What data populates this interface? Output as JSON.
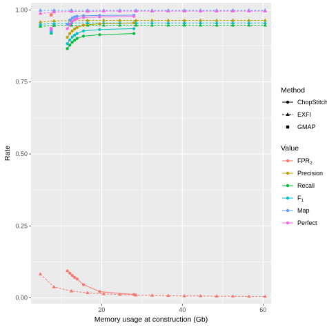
{
  "chart_data": {
    "type": "line",
    "xlabel": "Memory usage at construction (Gb)",
    "ylabel": "Rate",
    "xlim": [
      2.5,
      62
    ],
    "ylim": [
      -0.02,
      1.025
    ],
    "x_ticks": [
      20,
      40,
      60
    ],
    "y_ticks": [
      0.0,
      0.25,
      0.5,
      0.75,
      1.0
    ],
    "y_tick_labels": [
      "0.00",
      "0.25",
      "0.50",
      "0.75",
      "1.00"
    ],
    "grid": true,
    "legend_position": "right",
    "legend": {
      "method_title": "Method",
      "methods": [
        {
          "key": "chopstitch",
          "label": "ChopStitch",
          "shape": "circle",
          "dash": "solid"
        },
        {
          "key": "exfi",
          "label": "EXFI",
          "shape": "triangle",
          "dash": "dashed"
        },
        {
          "key": "gmap",
          "label": "GMAP",
          "shape": "square",
          "dash": "none"
        }
      ],
      "value_title": "Value",
      "values": [
        {
          "key": "fpr2",
          "label": "FPR",
          "sub": "2",
          "color": "#F8766D"
        },
        {
          "key": "precision",
          "label": "Precision",
          "sub": "",
          "color": "#B79F00"
        },
        {
          "key": "recall",
          "label": "Recall",
          "sub": "",
          "color": "#00BA38"
        },
        {
          "key": "f1",
          "label": "F",
          "sub": "1",
          "color": "#00BFC4"
        },
        {
          "key": "map",
          "label": "Map",
          "sub": "",
          "color": "#619CFF"
        },
        {
          "key": "perfect",
          "label": "Perfect",
          "sub": "",
          "color": "#F564E3"
        }
      ]
    },
    "series": [
      {
        "method": "exfi",
        "value": "fpr2",
        "x": [
          4.8,
          8.2,
          12.5,
          16.5,
          20.5,
          24.5,
          28.5,
          32.5,
          36.5,
          40.5,
          44.5,
          48.5,
          52.5,
          56.5,
          60.5
        ],
        "y": [
          0.083,
          0.038,
          0.024,
          0.018,
          0.014,
          0.012,
          0.01,
          0.009,
          0.008,
          0.007,
          0.007,
          0.006,
          0.006,
          0.005,
          0.005
        ]
      },
      {
        "method": "exfi",
        "value": "precision",
        "x": [
          4.8,
          8.2,
          12.5,
          16.5,
          20.5,
          24.5,
          28.5,
          32.5,
          36.5,
          40.5,
          44.5,
          48.5,
          52.5,
          56.5,
          60.5
        ],
        "y": [
          0.958,
          0.962,
          0.963,
          0.964,
          0.964,
          0.964,
          0.964,
          0.964,
          0.964,
          0.964,
          0.964,
          0.964,
          0.964,
          0.964,
          0.964
        ]
      },
      {
        "method": "exfi",
        "value": "recall",
        "x": [
          4.8,
          8.2,
          12.5,
          16.5,
          20.5,
          24.5,
          28.5,
          32.5,
          36.5,
          40.5,
          44.5,
          48.5,
          52.5,
          56.5,
          60.5
        ],
        "y": [
          0.943,
          0.946,
          0.947,
          0.947,
          0.947,
          0.947,
          0.947,
          0.947,
          0.947,
          0.947,
          0.947,
          0.947,
          0.947,
          0.947,
          0.947
        ]
      },
      {
        "method": "exfi",
        "value": "f1",
        "x": [
          4.8,
          8.2,
          12.5,
          16.5,
          20.5,
          24.5,
          28.5,
          32.5,
          36.5,
          40.5,
          44.5,
          48.5,
          52.5,
          56.5,
          60.5
        ],
        "y": [
          0.95,
          0.953,
          0.955,
          0.955,
          0.955,
          0.955,
          0.955,
          0.955,
          0.955,
          0.955,
          0.955,
          0.955,
          0.955,
          0.955,
          0.955
        ]
      },
      {
        "method": "exfi",
        "value": "map",
        "x": [
          4.8,
          8.2,
          12.5,
          16.5,
          20.5,
          24.5,
          28.5,
          32.5,
          36.5,
          40.5,
          44.5,
          48.5,
          52.5,
          56.5,
          60.5
        ],
        "y": [
          0.999,
          0.999,
          0.999,
          0.999,
          0.999,
          0.999,
          0.999,
          0.999,
          0.999,
          0.999,
          0.999,
          0.999,
          0.999,
          0.999,
          0.999
        ]
      },
      {
        "method": "exfi",
        "value": "perfect",
        "x": [
          4.8,
          8.2,
          12.5,
          16.5,
          20.5,
          24.5,
          28.5,
          32.5,
          36.5,
          40.5,
          44.5,
          48.5,
          52.5,
          56.5,
          60.5
        ],
        "y": [
          0.988,
          0.993,
          0.995,
          0.995,
          0.996,
          0.996,
          0.996,
          0.996,
          0.996,
          0.996,
          0.996,
          0.996,
          0.996,
          0.996,
          0.996
        ]
      },
      {
        "method": "chopstitch",
        "value": "fpr2",
        "x": [
          11.5,
          12.1,
          12.7,
          13.3,
          13.9,
          15.5,
          19.5,
          28.0
        ],
        "y": [
          0.094,
          0.086,
          0.078,
          0.071,
          0.066,
          0.046,
          0.022,
          0.012
        ]
      },
      {
        "method": "chopstitch",
        "value": "precision",
        "x": [
          11.5,
          12.1,
          12.7,
          13.3,
          13.9,
          15.5,
          19.5,
          28.0
        ],
        "y": [
          0.905,
          0.918,
          0.927,
          0.934,
          0.939,
          0.947,
          0.952,
          0.955
        ]
      },
      {
        "method": "chopstitch",
        "value": "recall",
        "x": [
          11.5,
          12.1,
          12.7,
          13.3,
          13.9,
          15.5,
          19.5,
          28.0
        ],
        "y": [
          0.866,
          0.878,
          0.888,
          0.895,
          0.901,
          0.909,
          0.914,
          0.918
        ]
      },
      {
        "method": "chopstitch",
        "value": "f1",
        "x": [
          11.5,
          12.1,
          12.7,
          13.3,
          13.9,
          15.5,
          19.5,
          28.0
        ],
        "y": [
          0.883,
          0.896,
          0.906,
          0.913,
          0.918,
          0.927,
          0.932,
          0.935
        ]
      },
      {
        "method": "chopstitch",
        "value": "map",
        "x": [
          11.5,
          12.1,
          12.7,
          13.3,
          13.9,
          15.5,
          19.5,
          28.0
        ],
        "y": [
          0.95,
          0.965,
          0.972,
          0.976,
          0.978,
          0.98,
          0.981,
          0.982
        ]
      },
      {
        "method": "chopstitch",
        "value": "perfect",
        "x": [
          11.5,
          12.1,
          12.7,
          13.3,
          13.9,
          15.5,
          19.5,
          28.0
        ],
        "y": [
          0.935,
          0.95,
          0.96,
          0.966,
          0.97,
          0.974,
          0.976,
          0.978
        ]
      },
      {
        "method": "gmap",
        "value": "precision",
        "x": [
          7.5
        ],
        "y": [
          0.925
        ]
      },
      {
        "method": "gmap",
        "value": "recall",
        "x": [
          7.5
        ],
        "y": [
          0.92
        ]
      },
      {
        "method": "gmap",
        "value": "f1",
        "x": [
          7.5
        ],
        "y": [
          0.922
        ]
      },
      {
        "method": "gmap",
        "value": "map",
        "x": [
          7.5
        ],
        "y": [
          0.928
        ]
      },
      {
        "method": "gmap",
        "value": "perfect",
        "x": [
          7.5
        ],
        "y": [
          0.935
        ]
      },
      {
        "method": "gmap",
        "value": "fpr2",
        "x": [
          7.5
        ],
        "y": [
          0.983
        ]
      }
    ]
  }
}
